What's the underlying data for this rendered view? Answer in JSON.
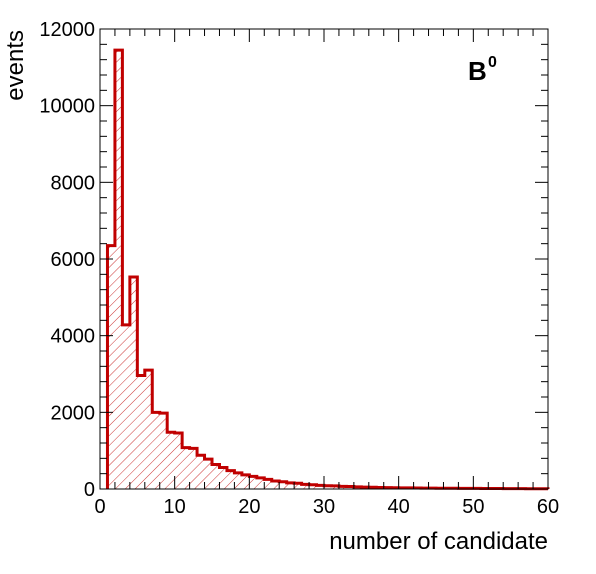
{
  "chart_data": {
    "type": "bar",
    "style": "step-histogram",
    "xlabel": "number of candidate",
    "ylabel": "events",
    "xlim": [
      0,
      60
    ],
    "ylim": [
      0,
      12000
    ],
    "xticks": [
      0,
      10,
      20,
      30,
      40,
      50,
      60
    ],
    "yticks": [
      0,
      2000,
      4000,
      6000,
      8000,
      10000,
      12000
    ],
    "xtick_labels": [
      "0",
      "10",
      "20",
      "30",
      "40",
      "50",
      "60"
    ],
    "ytick_labels": [
      "0",
      "2000",
      "4000",
      "6000",
      "8000",
      "10000",
      "12000"
    ],
    "annotation": {
      "text": "B",
      "superscript": "0",
      "position": "top-right"
    },
    "line_color": "#c00000",
    "fill": "diagonal hatch",
    "bin_width": 1,
    "bin_starts": [
      1,
      2,
      3,
      4,
      5,
      6,
      7,
      8,
      9,
      10,
      11,
      12,
      13,
      14,
      15,
      16,
      17,
      18,
      19,
      20,
      21,
      22,
      23,
      24,
      25,
      26,
      27,
      28,
      29,
      30,
      31,
      32,
      33,
      34,
      35,
      36,
      37,
      38,
      39,
      40,
      41,
      42,
      43,
      44,
      45,
      46,
      47,
      48,
      49,
      50,
      51,
      52,
      53,
      54,
      55,
      56,
      57,
      58,
      59
    ],
    "values": [
      6350,
      11450,
      4280,
      5530,
      2960,
      3100,
      2000,
      1980,
      1480,
      1460,
      1080,
      1060,
      880,
      780,
      640,
      560,
      480,
      420,
      370,
      330,
      290,
      250,
      210,
      190,
      160,
      150,
      120,
      110,
      95,
      85,
      80,
      70,
      65,
      55,
      50,
      45,
      40,
      35,
      32,
      30,
      28,
      26,
      24,
      22,
      20,
      19,
      18,
      17,
      16,
      15,
      14,
      13,
      12,
      11,
      10,
      9,
      8,
      7,
      6
    ],
    "grid": false
  }
}
